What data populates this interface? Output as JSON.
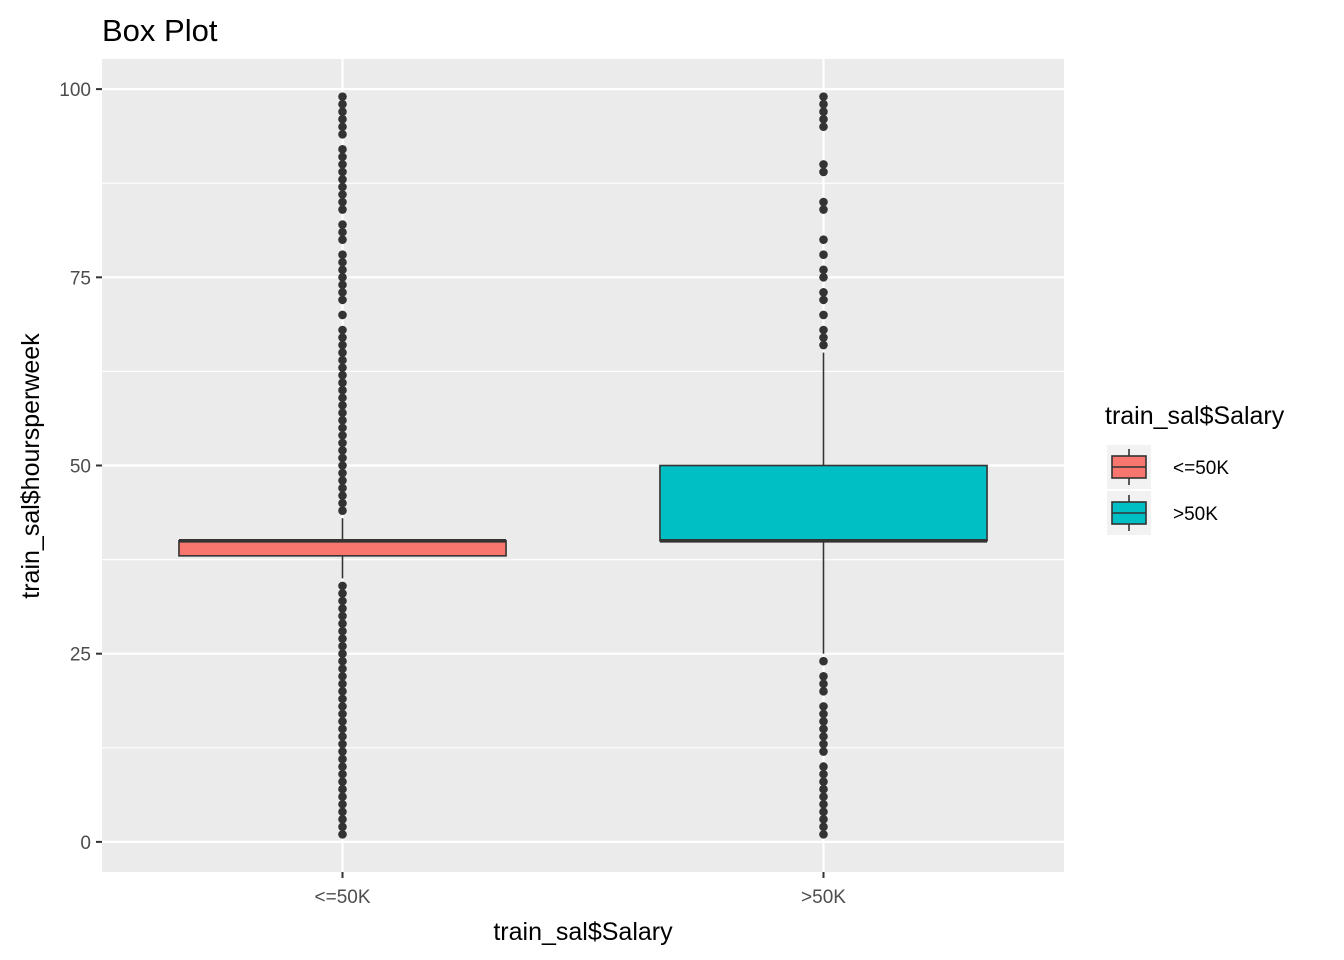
{
  "chart_data": {
    "type": "box",
    "title": "Box Plot",
    "xlabel": "train_sal$Salary",
    "ylabel": "train_sal$hoursperweek",
    "categories": [
      "<=50K",
      ">50K"
    ],
    "ylim": [
      -4,
      104
    ],
    "yticks": [
      0,
      25,
      50,
      75,
      100
    ],
    "grid": true,
    "legend": {
      "title": "train_sal$Salary",
      "position": "right",
      "entries": [
        {
          "label": "<=50K",
          "color": "#F8766D"
        },
        {
          "label": ">50K",
          "color": "#00BFC4"
        }
      ]
    },
    "series": [
      {
        "category": "<=50K",
        "color": "#F8766D",
        "whisker_low": 35,
        "q1": 38,
        "median": 40,
        "q3": 40,
        "whisker_high": 43,
        "outliers": [
          1,
          2,
          3,
          4,
          5,
          6,
          7,
          8,
          9,
          10,
          11,
          12,
          13,
          14,
          15,
          16,
          17,
          18,
          19,
          20,
          21,
          22,
          23,
          24,
          25,
          26,
          27,
          28,
          29,
          30,
          31,
          32,
          33,
          34,
          44,
          45,
          46,
          47,
          48,
          49,
          50,
          51,
          52,
          53,
          54,
          55,
          56,
          57,
          58,
          59,
          60,
          61,
          62,
          63,
          64,
          65,
          66,
          67,
          68,
          70,
          72,
          73,
          74,
          75,
          76,
          77,
          78,
          80,
          81,
          82,
          84,
          85,
          86,
          87,
          88,
          89,
          90,
          91,
          92,
          94,
          95,
          96,
          97,
          98,
          99
        ]
      },
      {
        "category": ">50K",
        "color": "#00BFC4",
        "whisker_low": 25,
        "q1": 40,
        "median": 40,
        "q3": 50,
        "whisker_high": 65,
        "outliers": [
          1,
          2,
          3,
          4,
          5,
          6,
          7,
          8,
          9,
          10,
          12,
          13,
          14,
          15,
          16,
          17,
          18,
          20,
          21,
          22,
          24,
          66,
          67,
          68,
          70,
          72,
          73,
          75,
          76,
          78,
          80,
          84,
          85,
          89,
          90,
          95,
          96,
          97,
          98,
          99
        ]
      }
    ]
  }
}
